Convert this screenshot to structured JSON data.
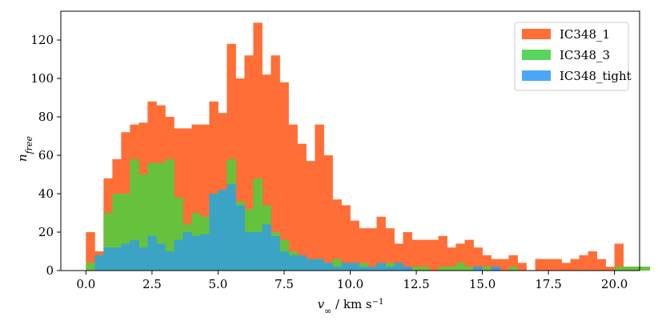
{
  "chart_data": {
    "type": "bar",
    "subtype": "overlaid-step-histogram",
    "title": "",
    "xlabel": {
      "main": "v",
      "sub": "∞",
      "rest": " / km s",
      "sup": "−1"
    },
    "ylabel": {
      "main": "n",
      "sub": "free"
    },
    "xlim": [
      -0.95,
      20.95
    ],
    "ylim": [
      0,
      135
    ],
    "xticks": [
      0,
      2.5,
      5,
      7.5,
      10,
      12.5,
      15,
      17.5,
      20
    ],
    "xtick_labels": [
      "0.0",
      "2.5",
      "5.0",
      "7.5",
      "10.0",
      "12.5",
      "15.0",
      "17.5",
      "20.0"
    ],
    "yticks": [
      0,
      20,
      40,
      60,
      80,
      100,
      120
    ],
    "ytick_labels": [
      "0",
      "20",
      "40",
      "60",
      "80",
      "100",
      "120"
    ],
    "bin_edges_start": 0,
    "bin_width": 0.3333,
    "legend_position": "top-right",
    "grid": false,
    "series": [
      {
        "name": "IC348_1",
        "color": "#ff6e36",
        "values": [
          20,
          10,
          48,
          58,
          72,
          76,
          77,
          88,
          86,
          80,
          74,
          74,
          76,
          76,
          88,
          82,
          118,
          100,
          112,
          129,
          102,
          112,
          98,
          76,
          66,
          57,
          76,
          60,
          37,
          34,
          26,
          22,
          22,
          28,
          22,
          14,
          20,
          16,
          16,
          16,
          18,
          12,
          14,
          16,
          12,
          8,
          6,
          6,
          8,
          4,
          0,
          6,
          6,
          6,
          4,
          6,
          8,
          10,
          6,
          2,
          14,
          2,
          2,
          2,
          0,
          2,
          4,
          4,
          2,
          0,
          2,
          0
        ]
      },
      {
        "name": "IC348_3",
        "color": "#59d45f",
        "values": [
          4,
          8,
          30,
          40,
          40,
          58,
          50,
          56,
          56,
          58,
          38,
          24,
          30,
          28,
          40,
          34,
          58,
          36,
          32,
          48,
          34,
          20,
          16,
          10,
          6,
          4,
          6,
          4,
          6,
          2,
          2,
          4,
          2,
          2,
          4,
          2,
          0,
          2,
          2,
          0,
          2,
          2,
          4,
          2,
          0,
          2,
          0,
          0,
          2,
          0,
          0,
          0,
          0,
          0,
          0,
          0,
          0,
          0,
          0,
          0,
          2,
          2,
          2,
          2,
          0,
          0,
          0,
          0,
          4,
          0,
          0,
          0,
          0,
          0,
          0,
          0,
          0,
          0,
          0,
          0,
          0,
          0,
          0,
          0,
          0,
          0,
          0,
          0,
          0,
          0,
          0,
          0,
          0,
          0,
          0,
          0,
          0,
          0,
          0,
          0,
          0,
          0,
          0,
          0,
          0,
          0,
          0,
          0,
          0,
          0,
          0,
          0,
          0,
          0,
          0,
          0,
          0,
          0,
          0,
          0,
          0,
          0
        ]
      },
      {
        "name": "IC348_tight",
        "color": "#4aa7f8",
        "values": [
          0,
          8,
          12,
          12,
          14,
          16,
          12,
          18,
          14,
          10,
          16,
          20,
          18,
          19,
          40,
          42,
          45,
          34,
          20,
          20,
          24,
          18,
          10,
          8,
          8,
          6,
          6,
          4,
          2,
          4,
          4,
          2,
          2,
          4,
          2,
          4,
          2,
          0,
          0,
          0,
          0,
          0,
          0,
          0,
          2,
          0,
          2,
          0,
          0,
          0,
          0,
          0,
          0,
          0,
          0,
          0,
          0,
          0,
          0,
          0,
          0,
          0,
          0,
          0,
          0,
          0,
          0,
          0,
          0,
          0,
          0,
          0
        ]
      }
    ],
    "overlap_colors": {
      "tight_over_1": "#3a98dd",
      "3_over_1": "#66c23c",
      "tight_over_3": "#3ba4c5"
    }
  }
}
